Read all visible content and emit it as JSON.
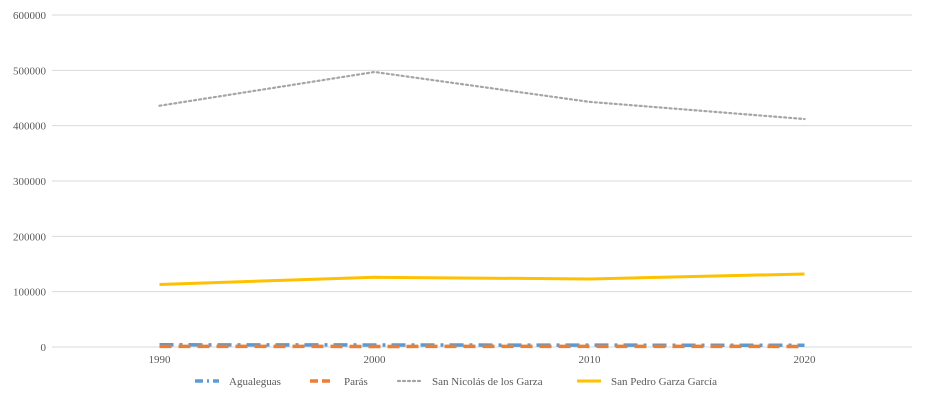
{
  "chart_data": {
    "type": "line",
    "title": "",
    "xlabel": "",
    "ylabel": "",
    "x": [
      "1990",
      "2000",
      "2010",
      "2020"
    ],
    "ylim": [
      0,
      600000
    ],
    "yticks": [
      "0",
      "100000",
      "200000",
      "300000",
      "400000",
      "500000",
      "600000"
    ],
    "grid": true,
    "legend": "bottom",
    "series": [
      {
        "name": "Agualeguas",
        "values": [
          4000,
          3700,
          3300,
          3200
        ],
        "color": "#5B9BD5",
        "dash": "long-dash-dot"
      },
      {
        "name": "Parás",
        "values": [
          1100,
          1000,
          1100,
          1000
        ],
        "color": "#ED7D31",
        "dash": "long-dash"
      },
      {
        "name": "San Nicolás de los Garza",
        "values": [
          436000,
          497000,
          443000,
          412000
        ],
        "color": "#A5A5A5",
        "dash": "dotted"
      },
      {
        "name": "San Pedro Garza García",
        "values": [
          113000,
          126000,
          123000,
          132000
        ],
        "color": "#FFC000",
        "dash": "solid"
      }
    ]
  }
}
